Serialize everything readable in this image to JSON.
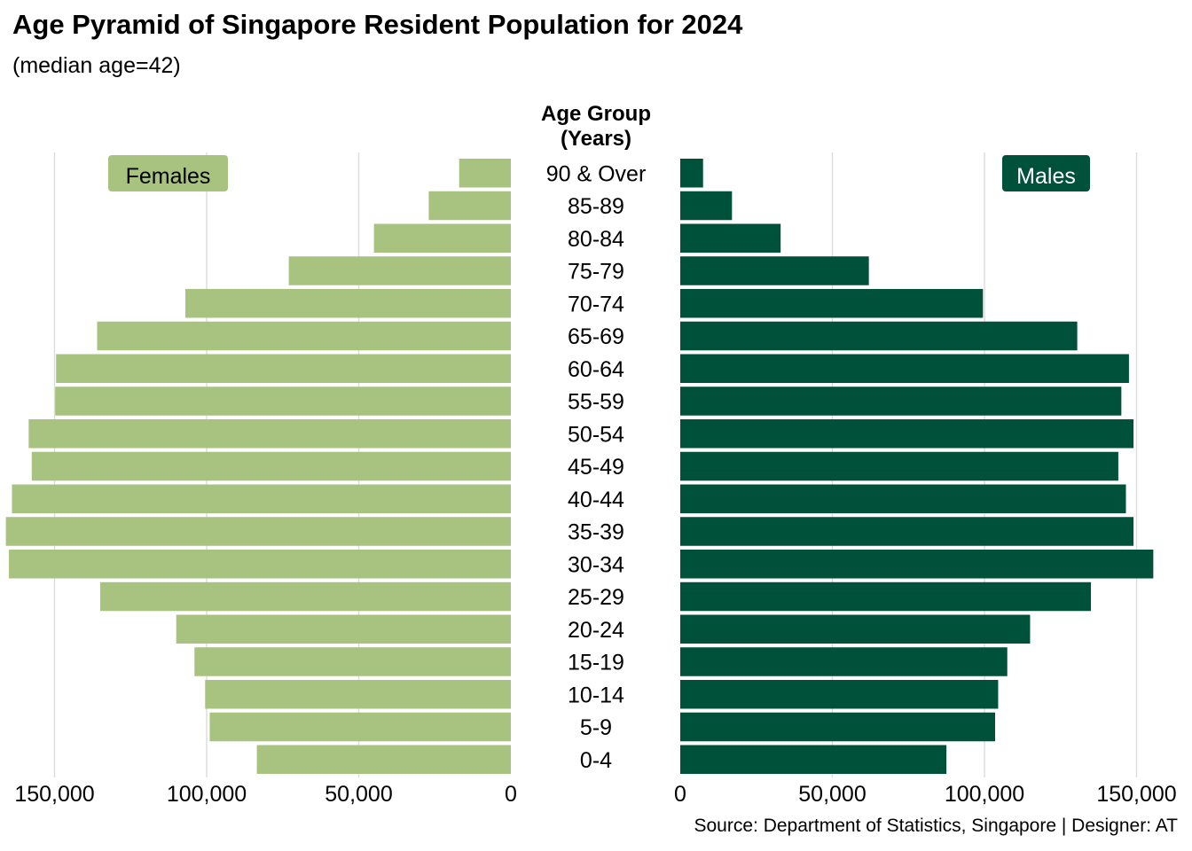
{
  "title": "Age Pyramid of Singapore Resident Population for 2024",
  "subtitle": "(median age=42)",
  "caption": "Source: Department of Statistics, Singapore | Designer: AT",
  "colors": {
    "females": "#a8c27f",
    "males": "#00513a",
    "grid": "#dcdcdc"
  },
  "chart_data": {
    "type": "bar",
    "orientation": "horizontal-pyramid",
    "category_header": [
      "Age Group",
      "(Years)"
    ],
    "categories": [
      "90 & Over",
      "85-89",
      "80-84",
      "75-79",
      "70-74",
      "65-69",
      "60-64",
      "55-59",
      "50-54",
      "45-49",
      "40-44",
      "35-39",
      "30-34",
      "25-29",
      "20-24",
      "15-19",
      "10-14",
      "5-9",
      "0-4"
    ],
    "series": [
      {
        "name": "Females",
        "values": [
          17000,
          27000,
          45000,
          73000,
          107000,
          136000,
          149500,
          149800,
          158500,
          157500,
          164000,
          166000,
          165000,
          135000,
          110000,
          104000,
          100500,
          99000,
          83500
        ]
      },
      {
        "name": "Males",
        "values": [
          7500,
          17000,
          33000,
          62000,
          99500,
          130500,
          147500,
          145000,
          149000,
          144000,
          146500,
          149000,
          155500,
          135000,
          115000,
          107500,
          104500,
          103500,
          87500
        ]
      }
    ],
    "xlim": [
      0,
      150000
    ],
    "ticks": [
      {
        "value": 150000,
        "label": "150,000"
      },
      {
        "value": 100000,
        "label": "100,000"
      },
      {
        "value": 50000,
        "label": "50,000"
      },
      {
        "value": 0,
        "label": "0"
      }
    ],
    "grid": true,
    "legend": {
      "females_position": "top-left",
      "males_position": "top-right"
    }
  }
}
